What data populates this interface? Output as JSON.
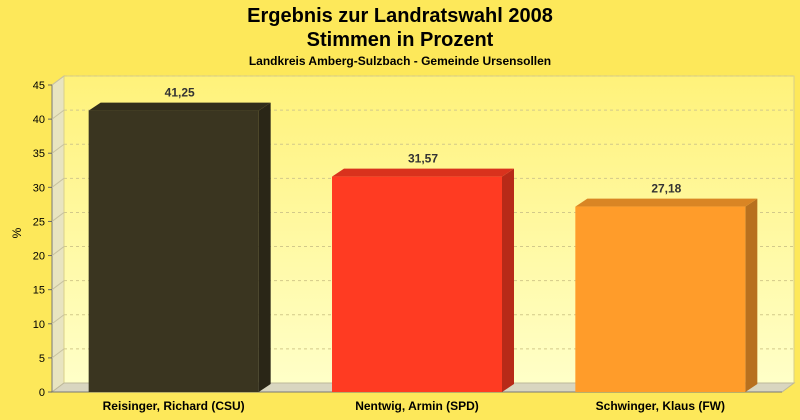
{
  "chart_data": {
    "type": "bar",
    "title": "Ergebnis zur Landratswahl 2008",
    "subtitle": "Stimmen in Prozent",
    "caption": "Landkreis Amberg-Sulzbach - Gemeinde Ursensollen",
    "ylabel": "%",
    "xlabel": "",
    "ylim": [
      0,
      45
    ],
    "yticks": [
      0,
      5,
      10,
      15,
      20,
      25,
      30,
      35,
      40,
      45
    ],
    "grid": true,
    "legend": "none",
    "categories": [
      "Reisinger, Richard (CSU)",
      "Nentwig, Armin (SPD)",
      "Schwinger, Klaus (FW)"
    ],
    "values": [
      41.25,
      31.57,
      27.18
    ],
    "value_labels": [
      "41,25",
      "31,57",
      "27,18"
    ],
    "colors": [
      "#3A3520",
      "#FF3B22",
      "#FF9C2A"
    ]
  },
  "colors": {
    "background": "#FDE85A",
    "plot_top": "#FFF27A",
    "plot_bottom": "#FFFFC8"
  }
}
